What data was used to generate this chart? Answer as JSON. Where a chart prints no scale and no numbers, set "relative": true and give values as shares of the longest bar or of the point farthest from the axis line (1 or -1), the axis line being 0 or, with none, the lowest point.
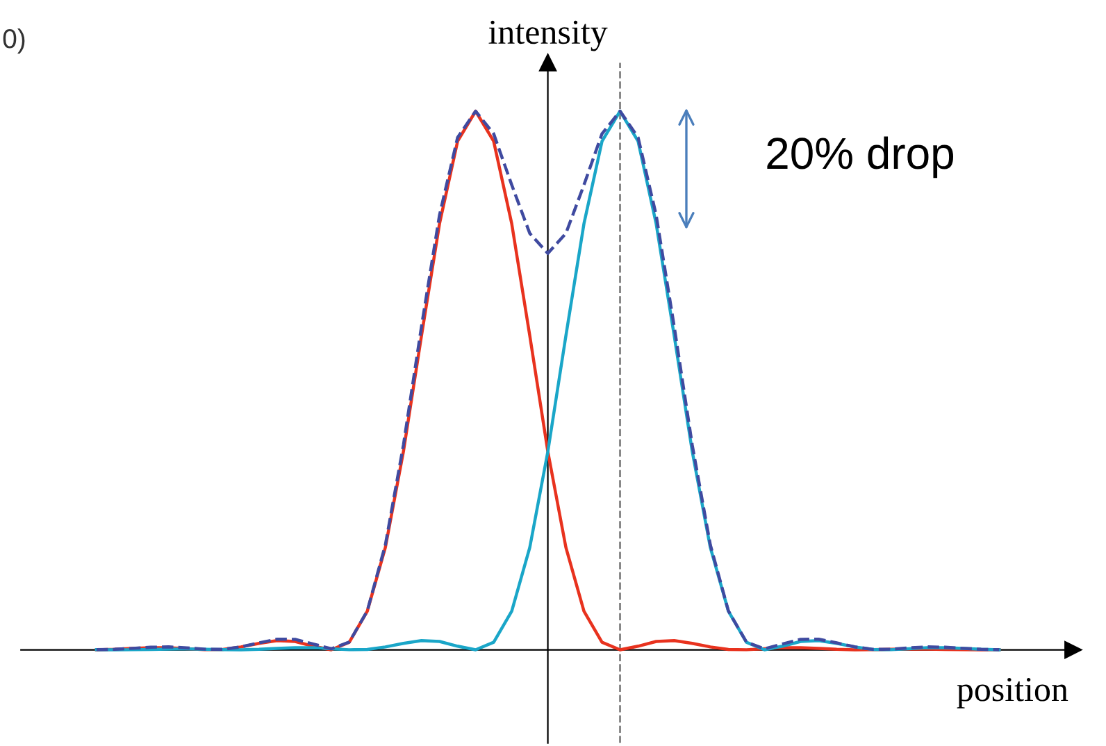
{
  "chart_data": {
    "type": "line",
    "relative": true,
    "xlabel": "position",
    "ylabel": "intensity",
    "marker": "none",
    "categories": [
      null,
      null,
      null,
      null,
      null,
      null,
      null,
      null,
      null,
      null,
      null,
      null,
      null,
      null,
      null,
      null,
      null,
      null,
      null,
      null,
      null,
      null,
      null,
      null,
      null,
      null,
      null,
      null,
      null,
      null,
      null,
      null,
      null,
      null,
      null,
      null,
      null,
      null,
      null,
      null,
      null,
      null,
      null,
      null,
      null,
      null,
      null,
      null,
      null,
      null,
      null
    ],
    "annotations": [
      "0)",
      "20% drop"
    ],
    "series": [
      {
        "color": "#e8321e",
        "line_style": "solid",
        "values": [
          0.0001,
          0.0009,
          0.0026,
          0.004,
          0.0041,
          0.002,
          0.0002,
          0.0006,
          0.0054,
          0.012,
          0.0171,
          0.0155,
          0.00675,
          0,
          0.0141,
          0.0718,
          0.19,
          0.368,
          0.583,
          0.791,
          0.944,
          1,
          0.944,
          0.791,
          0.583,
          0.368,
          0.19,
          0.0718,
          0.0141,
          0,
          0.00675,
          0.0155,
          0.0171,
          0.012,
          0.0054,
          0.0006,
          0.0002,
          0.002,
          0.0041,
          0.004,
          0.0026,
          0.0009,
          0.0001,
          0.0003,
          0.001,
          0.0016,
          0.0014,
          0.0008,
          0.0002,
          0,
          0.0003
        ]
      },
      {
        "color": "#1aa6c8",
        "line_style": "solid",
        "values": [
          0.0003,
          0,
          0.0002,
          0.0008,
          0.0014,
          0.0016,
          0.001,
          0.0003,
          0.0001,
          0.0009,
          0.0026,
          0.004,
          0.0041,
          0.002,
          0.0002,
          0.0006,
          0.0054,
          0.012,
          0.0171,
          0.0155,
          0.00675,
          0,
          0.0141,
          0.0718,
          0.19,
          0.368,
          0.583,
          0.791,
          0.944,
          1,
          0.944,
          0.791,
          0.583,
          0.368,
          0.19,
          0.0718,
          0.0141,
          0,
          0.00675,
          0.0155,
          0.0171,
          0.012,
          0.0054,
          0.0006,
          0.0002,
          0.002,
          0.0041,
          0.004,
          0.0026,
          0.0009,
          0.0001
        ]
      },
      {
        "color": "#3f4aa0",
        "line_style": "dashed",
        "values": [
          0.0004,
          0.0009,
          0.0028,
          0.0048,
          0.0055,
          0.0036,
          0.0012,
          0.0009,
          0.0055,
          0.0129,
          0.0197,
          0.0195,
          0.0109,
          0.002,
          0.0143,
          0.0724,
          0.195,
          0.38,
          0.6,
          0.807,
          0.951,
          1,
          0.958,
          0.863,
          0.773,
          0.736,
          0.773,
          0.863,
          0.958,
          1,
          0.951,
          0.807,
          0.6,
          0.38,
          0.195,
          0.0724,
          0.0143,
          0.002,
          0.0109,
          0.0195,
          0.0197,
          0.0129,
          0.0055,
          0.0009,
          0.0012,
          0.0036,
          0.0055,
          0.0048,
          0.0028,
          0.0009,
          0.0004
        ]
      }
    ]
  }
}
